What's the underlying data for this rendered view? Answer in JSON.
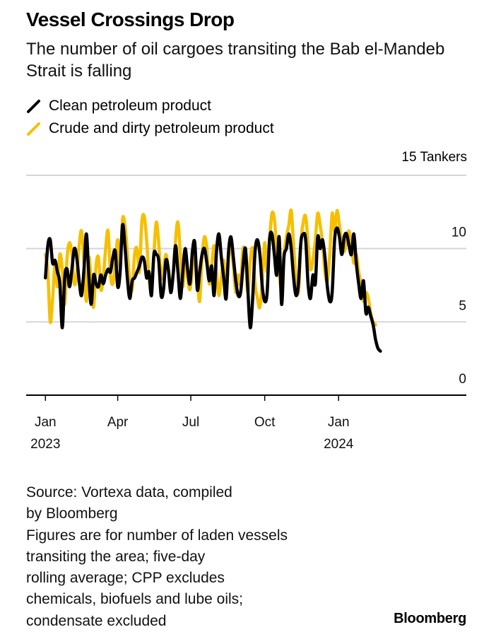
{
  "title": "Vessel Crossings Drop",
  "subtitle": "The number of oil cargoes transiting the Bab el-Mandeb Strait is falling",
  "legend": [
    {
      "label": "Clean petroleum product",
      "color": "#000000",
      "icon": "line-swatch-icon"
    },
    {
      "label": "Crude and dirty petroleum product",
      "color": "#F5C000",
      "icon": "line-swatch-icon"
    }
  ],
  "source_lines": [
    "Source: Vortexa data, compiled",
    "by Bloomberg",
    "Figures are for number of laden vessels",
    "transiting the area; five-day",
    "rolling average; CPP excludes",
    "chemicals, biofuels and lube oils;",
    "condensate excluded"
  ],
  "brand": "Bloomberg",
  "chart_data": {
    "type": "line",
    "title": "Vessel Crossings Drop",
    "subtitle": "The number of oil cargoes transiting the Bab el-Mandeb Strait is falling",
    "xlabel": "",
    "ylabel": "Tankers",
    "unit_label": "15 Tankers",
    "ylim": [
      0,
      15
    ],
    "yticks": [
      0,
      5,
      10,
      15
    ],
    "ytick_labels": [
      "0",
      "5",
      "10",
      ""
    ],
    "xlim": [
      "2022-12-08",
      "2024-06-08"
    ],
    "xticks": [
      {
        "date": "2023-01-01",
        "label": "Jan",
        "year": "2023"
      },
      {
        "date": "2023-04-01",
        "label": "Apr",
        "year": ""
      },
      {
        "date": "2023-07-01",
        "label": "Jul",
        "year": ""
      },
      {
        "date": "2023-10-01",
        "label": "Oct",
        "year": ""
      },
      {
        "date": "2024-01-01",
        "label": "Jan",
        "year": "2024"
      }
    ],
    "grid": true,
    "legend_position": "top-left",
    "start_date": "2023-01-01",
    "step_days": 3,
    "series": [
      {
        "name": "Clean petroleum product",
        "color": "#000000",
        "values": [
          8.0,
          10.2,
          10.6,
          9.0,
          9.2,
          8.4,
          7.6,
          4.6,
          8.0,
          8.6,
          7.4,
          8.6,
          10.0,
          9.4,
          7.8,
          6.8,
          8.6,
          11.0,
          8.2,
          6.2,
          8.2,
          7.6,
          7.4,
          8.2,
          7.6,
          8.2,
          8.6,
          8.4,
          9.4,
          9.8,
          7.4,
          8.4,
          11.6,
          10.2,
          8.0,
          6.6,
          7.8,
          8.0,
          8.4,
          8.8,
          9.4,
          9.2,
          8.0,
          8.4,
          6.8,
          9.6,
          9.6,
          9.2,
          6.8,
          7.2,
          9.2,
          8.6,
          7.0,
          8.2,
          10.2,
          8.4,
          6.6,
          8.4,
          10.0,
          8.6,
          7.6,
          9.8,
          10.4,
          7.2,
          8.4,
          9.6,
          10.0,
          9.0,
          7.8,
          8.8,
          6.8,
          9.8,
          11.0,
          9.4,
          8.0,
          6.6,
          9.8,
          10.8,
          9.4,
          7.8,
          6.8,
          7.0,
          8.8,
          10.0,
          7.2,
          4.6,
          6.6,
          9.8,
          10.6,
          9.6,
          7.4,
          6.4,
          7.0,
          10.6,
          11.0,
          9.6,
          8.2,
          10.8,
          6.2,
          9.4,
          10.0,
          11.0,
          10.0,
          8.0,
          6.8,
          7.6,
          10.4,
          11.0,
          10.6,
          7.6,
          6.6,
          8.2,
          7.6,
          10.8,
          10.0,
          10.6,
          9.4,
          7.4,
          6.4,
          7.0,
          10.6,
          11.4,
          10.8,
          9.6,
          10.8,
          11.0,
          10.2,
          9.6,
          11.0,
          9.0,
          7.6,
          6.6,
          7.8,
          5.6,
          6.0,
          5.4,
          4.8,
          3.8,
          3.2,
          3.0
        ]
      },
      {
        "name": "Crude and dirty petroleum product",
        "color": "#F5C000",
        "values": [
          9.6,
          8.4,
          5.0,
          6.6,
          9.0,
          7.4,
          9.6,
          8.6,
          6.2,
          9.4,
          10.4,
          9.6,
          7.6,
          8.2,
          10.2,
          11.2,
          9.0,
          6.4,
          9.4,
          7.8,
          6.0,
          8.8,
          9.4,
          7.2,
          8.0,
          10.0,
          11.2,
          8.2,
          7.6,
          9.0,
          10.6,
          8.8,
          12.0,
          11.6,
          9.8,
          7.8,
          7.2,
          9.6,
          10.0,
          8.4,
          11.8,
          12.2,
          10.6,
          8.0,
          7.0,
          9.6,
          11.8,
          10.4,
          8.0,
          8.6,
          9.6,
          8.6,
          7.4,
          8.2,
          10.6,
          11.8,
          9.6,
          7.4,
          9.4,
          8.0,
          7.2,
          8.6,
          9.8,
          8.2,
          6.4,
          9.4,
          10.8,
          10.0,
          7.6,
          8.8,
          10.2,
          8.4,
          6.8,
          8.0,
          9.2,
          7.0,
          9.4,
          10.2,
          8.8,
          7.0,
          8.2,
          7.6,
          10.0,
          9.4,
          7.0,
          9.2,
          10.0,
          7.6,
          6.6,
          6.0,
          7.8,
          10.4,
          8.4,
          10.6,
          12.4,
          12.0,
          10.0,
          8.4,
          7.2,
          9.6,
          10.8,
          11.6,
          12.6,
          10.2,
          8.0,
          7.0,
          10.4,
          11.8,
          12.2,
          10.4,
          8.6,
          9.2,
          10.6,
          12.4,
          11.6,
          10.4,
          8.4,
          7.8,
          9.6,
          12.4,
          11.2,
          12.6,
          11.6,
          10.4,
          9.8,
          10.6,
          11.2,
          10.2,
          9.0,
          9.6,
          8.4,
          7.6,
          6.4,
          7.0,
          6.6,
          5.6,
          5.0,
          4.8
        ]
      }
    ]
  }
}
